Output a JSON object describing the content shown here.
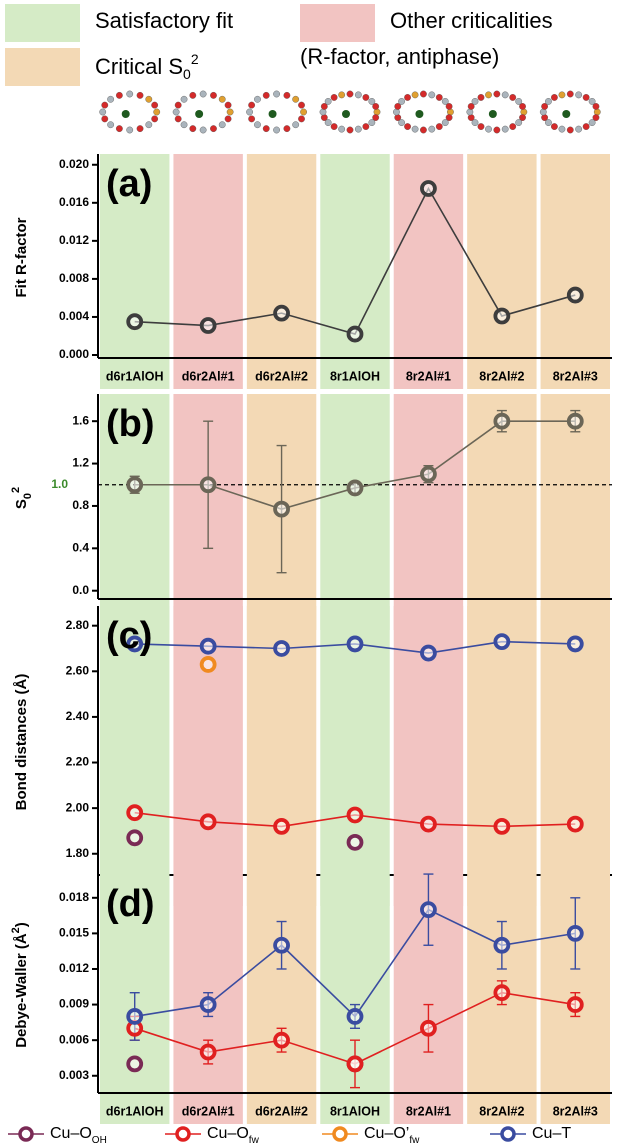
{
  "category_legend": [
    {
      "label": "Satisfactory fit",
      "color": "#d5ebc6"
    },
    {
      "label": "Critical S",
      "sub": "0",
      "sup": "2",
      "color": "#f3d9b5"
    },
    {
      "label": "Other criticalities",
      "label2": "(R-factor, antiphase)",
      "color": "#f2c4c2"
    }
  ],
  "chart_data": [
    {
      "type": "line",
      "panel_label": "(a)",
      "ylabel": "Fit R-factor",
      "categories": [
        "d6r1AlOH",
        "d6r2Al#1",
        "d6r2Al#2",
        "8r1AlOH",
        "8r2Al#1",
        "8r2Al#2",
        "8r2Al#3"
      ],
      "category_colors": [
        "#d5ebc6",
        "#f2c4c2",
        "#f3d9b5",
        "#d5ebc6",
        "#f2c4c2",
        "#f3d9b5",
        "#f3d9b5"
      ],
      "values": [
        0.0035,
        0.0031,
        0.0044,
        0.0022,
        0.0175,
        0.0041,
        0.0063
      ],
      "color": "#3d3d3d",
      "connect": true,
      "ylim": [
        0,
        0.0205
      ],
      "yticks": [
        {
          "value": 0,
          "label": "0.000"
        },
        0.004,
        0.008,
        0.012,
        0.016,
        {
          "value": 0.02,
          "label": "0.020"
        }
      ]
    },
    {
      "type": "line",
      "panel_label": "(b)",
      "ylabel": "S",
      "ylabel_sub": "0",
      "ylabel_sup": "2",
      "categories": [
        "d6r1AlOH",
        "d6r2Al#1",
        "d6r2Al#2",
        "8r1AlOH",
        "8r2Al#1",
        "8r2Al#2",
        "8r2Al#3"
      ],
      "category_colors": [
        "#d5ebc6",
        "#f2c4c2",
        "#f3d9b5",
        "#d5ebc6",
        "#f2c4c2",
        "#f3d9b5",
        "#f3d9b5"
      ],
      "values": [
        1.0,
        1.0,
        0.77,
        0.97,
        1.1,
        1.6,
        1.6
      ],
      "errors": [
        0.08,
        0.6,
        0.6,
        0.05,
        0.08,
        0.1,
        0.1
      ],
      "color": "#6b6657",
      "connect": true,
      "reference_line": {
        "value": 1,
        "label": "1.0",
        "color": "#3a8a2a"
      },
      "ylim": [
        -0.05,
        1.8
      ],
      "yticks": [
        {
          "value": 0,
          "label": "0.0"
        },
        0.4,
        0.8,
        1.2,
        1.6
      ]
    },
    {
      "type": "line",
      "panel_label": "(c)",
      "ylabel": "Bond distances (Å)",
      "categories": [
        "d6r1AlOH",
        "d6r2Al#1",
        "d6r2Al#2",
        "8r1AlOH",
        "8r2Al#1",
        "8r2Al#2",
        "8r2Al#3"
      ],
      "category_colors": [
        "#d5ebc6",
        "#f2c4c2",
        "#f3d9b5",
        "#d5ebc6",
        "#f2c4c2",
        "#f3d9b5",
        "#f3d9b5"
      ],
      "series": [
        {
          "color": "#7a2a55",
          "connect": false,
          "values": [
            1.87,
            null,
            null,
            1.85,
            null,
            null,
            null
          ]
        },
        {
          "color": "#e02020",
          "connect": true,
          "values": [
            1.98,
            1.94,
            1.92,
            1.97,
            1.93,
            1.92,
            1.93
          ]
        },
        {
          "color": "#f08a20",
          "connect": false,
          "values": [
            null,
            2.63,
            null,
            null,
            null,
            null,
            null
          ]
        },
        {
          "color": "#3a4ca0",
          "connect": true,
          "values": [
            2.72,
            2.71,
            2.7,
            2.72,
            2.68,
            2.73,
            2.72
          ]
        }
      ],
      "ylim": [
        1.72,
        2.86
      ],
      "yticks": [
        {
          "value": 1.8,
          "label": "1.80"
        },
        {
          "value": 2,
          "label": "2.00"
        },
        {
          "value": 2.2,
          "label": "2.20"
        },
        {
          "value": 2.4,
          "label": "2.40"
        },
        {
          "value": 2.6,
          "label": "2.60"
        },
        {
          "value": 2.8,
          "label": "2.80"
        }
      ]
    },
    {
      "type": "line",
      "panel_label": "(d)",
      "ylabel": "Debye-Waller (Å",
      "ylabel_sup": "2",
      "ylabel_end": ")",
      "categories": [
        "d6r1AlOH",
        "d6r2Al#1",
        "d6r2Al#2",
        "8r1AlOH",
        "8r2Al#1",
        "8r2Al#2",
        "8r2Al#3"
      ],
      "category_colors": [
        "#d5ebc6",
        "#f2c4c2",
        "#f3d9b5",
        "#d5ebc6",
        "#f2c4c2",
        "#f3d9b5",
        "#f3d9b5"
      ],
      "legend": "bottom",
      "series": [
        {
          "name": "Cu–O",
          "sub": "OH",
          "color": "#7a2a55",
          "connect": false,
          "values": [
            0.004,
            null,
            null,
            0.004,
            null,
            null,
            null
          ]
        },
        {
          "name": "Cu–O",
          "sub": "fw",
          "color": "#e02020",
          "connect": true,
          "values": [
            0.007,
            0.005,
            0.006,
            0.004,
            0.007,
            0.01,
            0.009
          ],
          "errors": [
            0.001,
            0.001,
            0.001,
            0.002,
            0.002,
            0.001,
            0.001
          ]
        },
        {
          "name": "Cu–O’",
          "sub": "fw",
          "color": "#f08a20",
          "connect": false,
          "values": [
            null,
            null,
            null,
            null,
            null,
            null,
            null
          ]
        },
        {
          "name": "Cu–T",
          "color": "#3a4ca0",
          "connect": true,
          "values": [
            0.008,
            0.009,
            0.014,
            0.008,
            0.017,
            0.014,
            0.015
          ],
          "errors": [
            0.002,
            0.001,
            0.002,
            0.001,
            0.003,
            0.002,
            0.003
          ]
        }
      ],
      "ylim": [
        0.0018,
        0.0195
      ],
      "yticks": [
        0.003,
        0.006,
        0.009,
        0.012,
        0.015,
        0.018
      ]
    }
  ]
}
